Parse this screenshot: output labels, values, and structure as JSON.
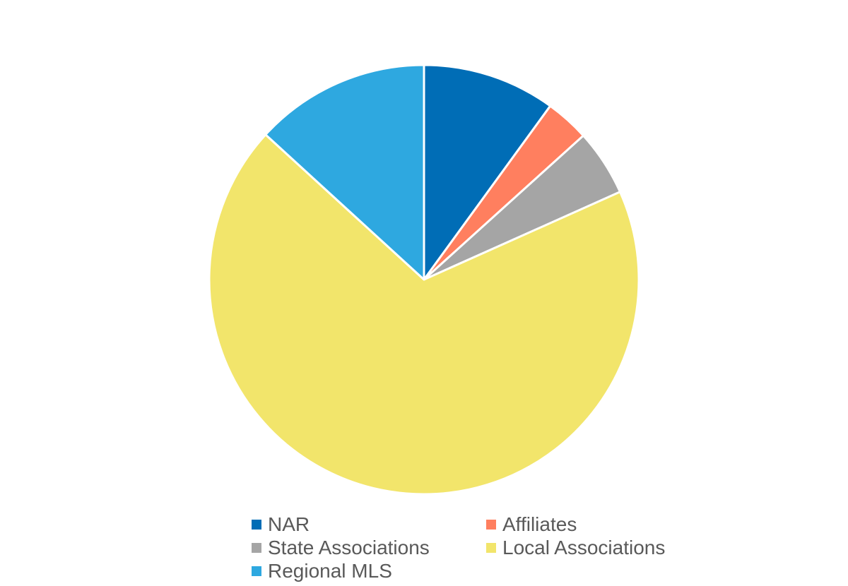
{
  "chart_data": {
    "type": "pie",
    "title": "",
    "legend_position": "bottom",
    "start_angle_deg": 0,
    "direction": "clockwise",
    "slices": [
      {
        "label": "NAR",
        "value": 10.0,
        "color": "#006db6"
      },
      {
        "label": "Affiliates",
        "value": 3.3,
        "color": "#ff7f5f"
      },
      {
        "label": "State Associations",
        "value": 5.0,
        "color": "#a5a5a5"
      },
      {
        "label": "Local Associations",
        "value": 68.5,
        "color": "#f2e56b"
      },
      {
        "label": "Regional MLS",
        "value": 13.2,
        "color": "#2ea8e0"
      }
    ],
    "legend": [
      "NAR",
      "Affiliates",
      "State Associations",
      "Local Associations",
      "Regional MLS"
    ]
  }
}
